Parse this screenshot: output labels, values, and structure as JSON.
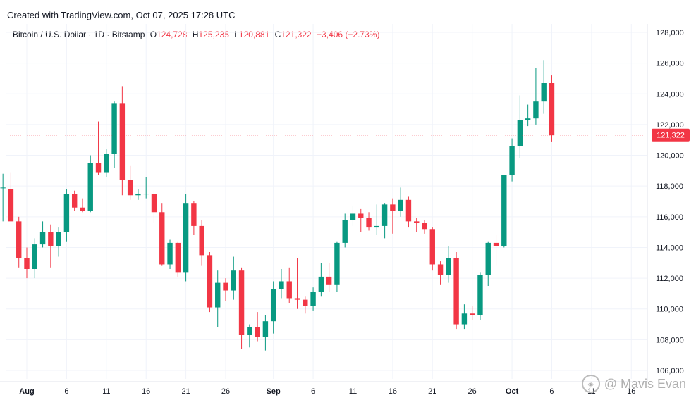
{
  "header": {
    "credit": "Created with TradingView.com, Oct 07, 2025 17:28 UTC"
  },
  "legend": {
    "symbol": "Bitcoin / U.S. Dollar · 1D · Bitstamp",
    "open_label": "O",
    "open": "124,728",
    "high_label": "H",
    "high": "125,235",
    "low_label": "L",
    "low": "120,881",
    "close_label": "C",
    "close": "121,322",
    "change": "−3,406 (−2.73%)"
  },
  "watermark": {
    "text": "@ Mavis Evan"
  },
  "colors": {
    "up": "#089981",
    "down": "#f23645",
    "grid": "#f0f3fa",
    "price_line": "#f23645"
  },
  "chart_data": {
    "type": "candlestick",
    "yaxis": {
      "min": 105000,
      "max": 128500,
      "ticks": [
        106000,
        108000,
        110000,
        112000,
        114000,
        116000,
        118000,
        120000,
        122000,
        124000,
        126000,
        128000
      ],
      "tick_labels": [
        "106,000",
        "108,000",
        "110,000",
        "112,000",
        "114,000",
        "116,000",
        "118,000",
        "120,000",
        "122,000",
        "124,000",
        "126,000",
        "128,000"
      ]
    },
    "last_price": {
      "value": 121322,
      "label": "121,322"
    },
    "xaxis": {
      "ticks": [
        {
          "label": "Aug",
          "date": "2025-08-01",
          "bold": true
        },
        {
          "label": "6",
          "date": "2025-08-06"
        },
        {
          "label": "11",
          "date": "2025-08-11"
        },
        {
          "label": "16",
          "date": "2025-08-16"
        },
        {
          "label": "21",
          "date": "2025-08-21"
        },
        {
          "label": "26",
          "date": "2025-08-26"
        },
        {
          "label": "Sep",
          "date": "2025-09-01",
          "bold": true
        },
        {
          "label": "6",
          "date": "2025-09-06"
        },
        {
          "label": "11",
          "date": "2025-09-11"
        },
        {
          "label": "16",
          "date": "2025-09-16"
        },
        {
          "label": "21",
          "date": "2025-09-21"
        },
        {
          "label": "26",
          "date": "2025-09-26"
        },
        {
          "label": "Oct",
          "date": "2025-10-01",
          "bold": true
        },
        {
          "label": "6",
          "date": "2025-10-06"
        },
        {
          "label": "11",
          "date": "2025-10-11"
        },
        {
          "label": "16",
          "date": "2025-10-16"
        }
      ]
    },
    "candles": [
      {
        "d": "2025-07-29",
        "o": 117900,
        "h": 118800,
        "l": 115700,
        "c": 117900
      },
      {
        "d": "2025-07-30",
        "o": 117800,
        "h": 118900,
        "l": 115900,
        "c": 115700
      },
      {
        "d": "2025-07-31",
        "o": 115700,
        "h": 116000,
        "l": 112700,
        "c": 113300
      },
      {
        "d": "2025-08-01",
        "o": 113300,
        "h": 114000,
        "l": 112000,
        "c": 112600
      },
      {
        "d": "2025-08-02",
        "o": 112600,
        "h": 114600,
        "l": 112000,
        "c": 114200
      },
      {
        "d": "2025-08-03",
        "o": 114200,
        "h": 115700,
        "l": 114000,
        "c": 115000
      },
      {
        "d": "2025-08-04",
        "o": 115000,
        "h": 115500,
        "l": 112700,
        "c": 114100
      },
      {
        "d": "2025-08-05",
        "o": 114100,
        "h": 115300,
        "l": 113400,
        "c": 115000
      },
      {
        "d": "2025-08-06",
        "o": 115000,
        "h": 117800,
        "l": 114400,
        "c": 117500
      },
      {
        "d": "2025-08-07",
        "o": 117500,
        "h": 117700,
        "l": 116400,
        "c": 116600
      },
      {
        "d": "2025-08-08",
        "o": 116600,
        "h": 117200,
        "l": 116300,
        "c": 116400
      },
      {
        "d": "2025-08-09",
        "o": 116400,
        "h": 120000,
        "l": 116300,
        "c": 119500
      },
      {
        "d": "2025-08-10",
        "o": 119500,
        "h": 122200,
        "l": 118700,
        "c": 118900
      },
      {
        "d": "2025-08-11",
        "o": 118900,
        "h": 120400,
        "l": 118600,
        "c": 120100
      },
      {
        "d": "2025-08-12",
        "o": 120100,
        "h": 123500,
        "l": 119200,
        "c": 123400
      },
      {
        "d": "2025-08-13",
        "o": 123400,
        "h": 124500,
        "l": 117400,
        "c": 118400
      },
      {
        "d": "2025-08-14",
        "o": 118400,
        "h": 119300,
        "l": 117100,
        "c": 117400
      },
      {
        "d": "2025-08-15",
        "o": 117400,
        "h": 117800,
        "l": 117100,
        "c": 117500
      },
      {
        "d": "2025-08-16",
        "o": 117500,
        "h": 118600,
        "l": 117200,
        "c": 117500
      },
      {
        "d": "2025-08-17",
        "o": 117500,
        "h": 117700,
        "l": 115600,
        "c": 116300
      },
      {
        "d": "2025-08-18",
        "o": 116300,
        "h": 116900,
        "l": 112800,
        "c": 112900
      },
      {
        "d": "2025-08-19",
        "o": 112900,
        "h": 114500,
        "l": 112600,
        "c": 114300
      },
      {
        "d": "2025-08-20",
        "o": 114300,
        "h": 114400,
        "l": 112100,
        "c": 112400
      },
      {
        "d": "2025-08-21",
        "o": 112400,
        "h": 117500,
        "l": 111800,
        "c": 116900
      },
      {
        "d": "2025-08-22",
        "o": 116900,
        "h": 117000,
        "l": 114800,
        "c": 115400
      },
      {
        "d": "2025-08-23",
        "o": 115400,
        "h": 115800,
        "l": 112800,
        "c": 113500
      },
      {
        "d": "2025-08-24",
        "o": 113500,
        "h": 113700,
        "l": 109800,
        "c": 110100
      },
      {
        "d": "2025-08-25",
        "o": 110100,
        "h": 112500,
        "l": 108800,
        "c": 111700
      },
      {
        "d": "2025-08-26",
        "o": 111700,
        "h": 112000,
        "l": 110500,
        "c": 111200
      },
      {
        "d": "2025-08-27",
        "o": 111200,
        "h": 113400,
        "l": 110600,
        "c": 112500
      },
      {
        "d": "2025-08-28",
        "o": 112500,
        "h": 112700,
        "l": 107400,
        "c": 108300
      },
      {
        "d": "2025-08-29",
        "o": 108300,
        "h": 109000,
        "l": 107500,
        "c": 108800
      },
      {
        "d": "2025-08-30",
        "o": 108800,
        "h": 109800,
        "l": 107900,
        "c": 108200
      },
      {
        "d": "2025-08-31",
        "o": 108200,
        "h": 109600,
        "l": 107300,
        "c": 109200
      },
      {
        "d": "2025-09-01",
        "o": 109200,
        "h": 111800,
        "l": 108400,
        "c": 111300
      },
      {
        "d": "2025-09-02",
        "o": 111300,
        "h": 112600,
        "l": 110700,
        "c": 111800
      },
      {
        "d": "2025-09-03",
        "o": 111800,
        "h": 112700,
        "l": 110400,
        "c": 110700
      },
      {
        "d": "2025-09-04",
        "o": 110700,
        "h": 113300,
        "l": 110000,
        "c": 110600
      },
      {
        "d": "2025-09-05",
        "o": 110600,
        "h": 110800,
        "l": 109700,
        "c": 110200
      },
      {
        "d": "2025-09-06",
        "o": 110200,
        "h": 111400,
        "l": 109900,
        "c": 111100
      },
      {
        "d": "2025-09-07",
        "o": 111100,
        "h": 113000,
        "l": 110800,
        "c": 112100
      },
      {
        "d": "2025-09-08",
        "o": 112100,
        "h": 113000,
        "l": 111100,
        "c": 111600
      },
      {
        "d": "2025-09-09",
        "o": 111600,
        "h": 114400,
        "l": 111100,
        "c": 114300
      },
      {
        "d": "2025-09-10",
        "o": 114300,
        "h": 116200,
        "l": 114000,
        "c": 115800
      },
      {
        "d": "2025-09-11",
        "o": 115800,
        "h": 116700,
        "l": 115400,
        "c": 116200
      },
      {
        "d": "2025-09-12",
        "o": 116200,
        "h": 116500,
        "l": 115000,
        "c": 115900
      },
      {
        "d": "2025-09-13",
        "o": 115900,
        "h": 116300,
        "l": 115100,
        "c": 115300
      },
      {
        "d": "2025-09-14",
        "o": 115300,
        "h": 116800,
        "l": 114800,
        "c": 115400
      },
      {
        "d": "2025-09-15",
        "o": 115400,
        "h": 116900,
        "l": 114600,
        "c": 116800
      },
      {
        "d": "2025-09-16",
        "o": 116800,
        "h": 117200,
        "l": 114900,
        "c": 116400
      },
      {
        "d": "2025-09-17",
        "o": 116400,
        "h": 117900,
        "l": 116000,
        "c": 117100
      },
      {
        "d": "2025-09-18",
        "o": 117100,
        "h": 117300,
        "l": 115300,
        "c": 115700
      },
      {
        "d": "2025-09-19",
        "o": 115700,
        "h": 115900,
        "l": 115000,
        "c": 115600
      },
      {
        "d": "2025-09-20",
        "o": 115600,
        "h": 115800,
        "l": 114900,
        "c": 115200
      },
      {
        "d": "2025-09-21",
        "o": 115200,
        "h": 115300,
        "l": 112500,
        "c": 112900
      },
      {
        "d": "2025-09-22",
        "o": 112900,
        "h": 113100,
        "l": 111600,
        "c": 112200
      },
      {
        "d": "2025-09-23",
        "o": 112200,
        "h": 114100,
        "l": 111700,
        "c": 113300
      },
      {
        "d": "2025-09-24",
        "o": 113300,
        "h": 113700,
        "l": 108700,
        "c": 109000
      },
      {
        "d": "2025-09-25",
        "o": 109000,
        "h": 110300,
        "l": 108700,
        "c": 109700
      },
      {
        "d": "2025-09-26",
        "o": 109700,
        "h": 110200,
        "l": 109300,
        "c": 109600
      },
      {
        "d": "2025-09-27",
        "o": 109600,
        "h": 112400,
        "l": 109300,
        "c": 112200
      },
      {
        "d": "2025-09-28",
        "o": 112200,
        "h": 114400,
        "l": 111500,
        "c": 114300
      },
      {
        "d": "2025-09-29",
        "o": 114300,
        "h": 114800,
        "l": 112800,
        "c": 114100
      },
      {
        "d": "2025-09-30",
        "o": 114100,
        "h": 118700,
        "l": 114000,
        "c": 118700
      },
      {
        "d": "2025-10-01",
        "o": 118700,
        "h": 121100,
        "l": 118300,
        "c": 120600
      },
      {
        "d": "2025-10-02",
        "o": 120600,
        "h": 123900,
        "l": 119800,
        "c": 122300
      },
      {
        "d": "2025-10-03",
        "o": 122300,
        "h": 123300,
        "l": 121900,
        "c": 122400
      },
      {
        "d": "2025-10-04",
        "o": 122400,
        "h": 125700,
        "l": 122000,
        "c": 123500
      },
      {
        "d": "2025-10-05",
        "o": 123500,
        "h": 126200,
        "l": 122700,
        "c": 124700
      },
      {
        "d": "2025-10-06",
        "o": 124700,
        "h": 125200,
        "l": 120900,
        "c": 121300
      }
    ]
  }
}
